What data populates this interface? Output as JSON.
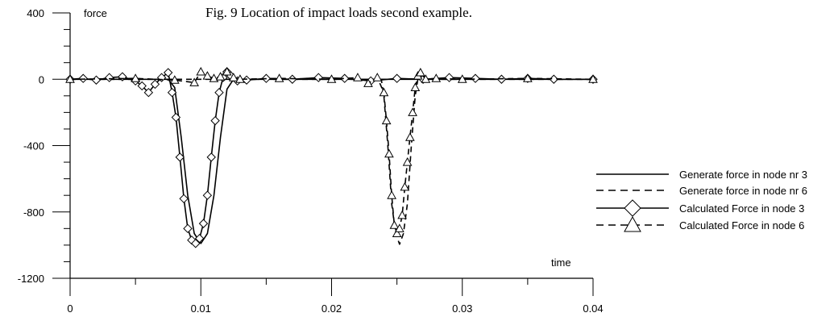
{
  "caption": "Fig. 9 Location of impact loads second example.",
  "chart_data": {
    "type": "line",
    "title": "",
    "xlabel": "time",
    "ylabel": "force",
    "xlim": [
      0,
      0.04
    ],
    "ylim": [
      -1200,
      400
    ],
    "x_ticks": [
      "0",
      "0.01",
      "0.02",
      "0.03",
      "0.04"
    ],
    "x_tick_values": [
      0,
      0.01,
      0.02,
      0.03,
      0.04
    ],
    "y_ticks": [
      "400",
      "0",
      "-400",
      "-800",
      "-1200"
    ],
    "y_tick_values": [
      400,
      0,
      -400,
      -800,
      -1200
    ],
    "grid": false,
    "legend_position": "right",
    "series": [
      {
        "name": "Generate force in node nr 3",
        "line": "solid",
        "marker": "none",
        "x": [
          0,
          0.006,
          0.0075,
          0.008,
          0.0085,
          0.009,
          0.0095,
          0.01,
          0.0105,
          0.011,
          0.0115,
          0.012,
          0.0125,
          0.014,
          0.04
        ],
        "y": [
          0,
          0,
          0,
          -50,
          -350,
          -700,
          -930,
          -990,
          -930,
          -700,
          -350,
          -60,
          0,
          0,
          0
        ]
      },
      {
        "name": "Generate force in node nr 6",
        "line": "dashed",
        "marker": "none",
        "x": [
          0,
          0.0238,
          0.024,
          0.0243,
          0.0246,
          0.0249,
          0.0252,
          0.0255,
          0.0258,
          0.0261,
          0.0264,
          0.0266,
          0.04
        ],
        "y": [
          0,
          0,
          -100,
          -400,
          -750,
          -930,
          -995,
          -930,
          -750,
          -400,
          -100,
          0,
          0
        ]
      },
      {
        "name": "Calculated Force in node 3",
        "line": "solid",
        "marker": "diamond",
        "x": [
          0,
          0.001,
          0.002,
          0.003,
          0.004,
          0.005,
          0.0055,
          0.006,
          0.0065,
          0.007,
          0.0075,
          0.0078,
          0.0081,
          0.0084,
          0.0087,
          0.009,
          0.0093,
          0.0096,
          0.0099,
          0.0102,
          0.0105,
          0.0108,
          0.0111,
          0.0114,
          0.0117,
          0.012,
          0.0123,
          0.0128,
          0.0135,
          0.015,
          0.017,
          0.019,
          0.021,
          0.023,
          0.025,
          0.027,
          0.029,
          0.031,
          0.033,
          0.035,
          0.037,
          0.04
        ],
        "y": [
          0,
          5,
          -5,
          10,
          15,
          -10,
          -40,
          -80,
          -30,
          10,
          40,
          -80,
          -230,
          -470,
          -720,
          -900,
          -970,
          -990,
          -960,
          -870,
          -700,
          -470,
          -250,
          -80,
          10,
          45,
          20,
          -10,
          -5,
          5,
          0,
          10,
          5,
          -10,
          5,
          0,
          10,
          5,
          0,
          5,
          0,
          0
        ]
      },
      {
        "name": "Calculated Force in node 6",
        "line": "dashed",
        "marker": "triangle",
        "x": [
          0,
          0.005,
          0.008,
          0.0095,
          0.01,
          0.0105,
          0.011,
          0.0115,
          0.012,
          0.0125,
          0.013,
          0.016,
          0.02,
          0.022,
          0.0228,
          0.0235,
          0.024,
          0.0242,
          0.0244,
          0.0246,
          0.0248,
          0.025,
          0.0252,
          0.0254,
          0.0256,
          0.0258,
          0.026,
          0.0262,
          0.0264,
          0.0266,
          0.0268,
          0.0272,
          0.028,
          0.03,
          0.035,
          0.04
        ],
        "y": [
          0,
          5,
          -5,
          -20,
          45,
          20,
          5,
          15,
          45,
          10,
          0,
          5,
          0,
          10,
          -25,
          10,
          -80,
          -250,
          -450,
          -700,
          -880,
          -930,
          -900,
          -820,
          -650,
          -500,
          -350,
          -200,
          -50,
          20,
          40,
          0,
          5,
          0,
          5,
          0
        ]
      }
    ]
  }
}
